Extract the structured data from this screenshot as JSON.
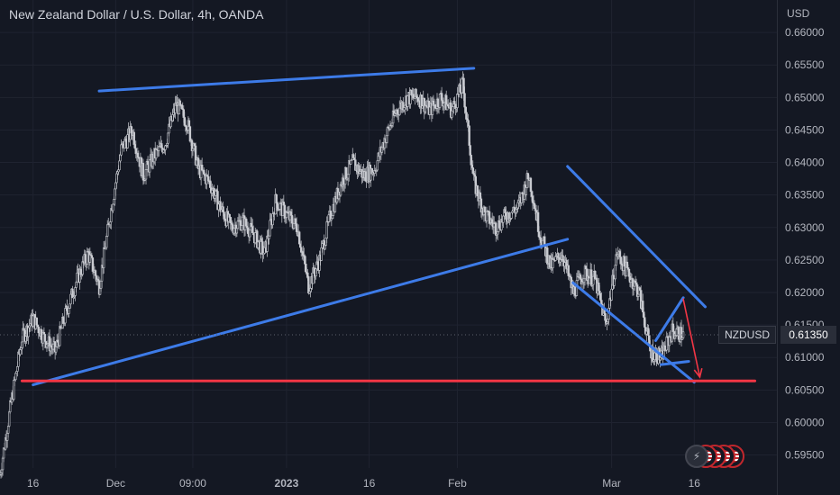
{
  "header": {
    "title": "New Zealand Dollar / U.S. Dollar, 4h, OANDA",
    "currency": "USD"
  },
  "price_label": {
    "symbol": "NZDUSD",
    "value": "0.61350"
  },
  "colors": {
    "background": "#141823",
    "candle": "#c9cbd1",
    "trendline": "#3d7be8",
    "support": "#f23645",
    "arrow": "#f23645",
    "axis_text": "#b2b5be"
  },
  "icons": [
    "lightning-icon",
    "us-flag-icon"
  ],
  "chart_data": {
    "type": "candlestick",
    "symbol": "NZDUSD",
    "timeframe": "4h",
    "source": "OANDA",
    "y_ticks": [
      0.66,
      0.655,
      0.65,
      0.645,
      0.64,
      0.635,
      0.63,
      0.625,
      0.62,
      0.615,
      0.61,
      0.605,
      0.6,
      0.595
    ],
    "y_tick_labels": [
      "0.66000",
      "0.65500",
      "0.65000",
      "0.64500",
      "0.64000",
      "0.63500",
      "0.63000",
      "0.62500",
      "0.62000",
      "0.61500",
      "0.61000",
      "0.60500",
      "0.60000",
      "0.59500"
    ],
    "ylim": [
      0.593,
      0.665
    ],
    "x_tick_labels": [
      "16",
      "Dec",
      "09:00",
      "2023",
      "16",
      "Feb",
      "Mar",
      "16"
    ],
    "x_tick_dates": [
      "2022-11-16",
      "2022-12-01",
      "2022-12-15",
      "2023-01-01",
      "2023-01-16",
      "2023-02-01",
      "2023-03-01",
      "2023-03-16"
    ],
    "xlim": [
      "2022-11-10",
      "2023-03-31"
    ],
    "last_price": 0.6135,
    "close_path": [
      [
        "2022-11-10",
        0.592
      ],
      [
        "2022-11-12",
        0.603
      ],
      [
        "2022-11-14",
        0.613
      ],
      [
        "2022-11-16",
        0.616
      ],
      [
        "2022-11-18",
        0.613
      ],
      [
        "2022-11-20",
        0.611
      ],
      [
        "2022-11-22",
        0.617
      ],
      [
        "2022-11-24",
        0.622
      ],
      [
        "2022-11-26",
        0.626
      ],
      [
        "2022-11-28",
        0.621
      ],
      [
        "2022-11-30",
        0.632
      ],
      [
        "2022-12-02",
        0.642
      ],
      [
        "2022-12-04",
        0.645
      ],
      [
        "2022-12-06",
        0.638
      ],
      [
        "2022-12-08",
        0.641
      ],
      [
        "2022-12-10",
        0.643
      ],
      [
        "2022-12-12",
        0.649
      ],
      [
        "2022-12-14",
        0.646
      ],
      [
        "2022-12-16",
        0.639
      ],
      [
        "2022-12-18",
        0.637
      ],
      [
        "2022-12-20",
        0.633
      ],
      [
        "2022-12-22",
        0.63
      ],
      [
        "2022-12-24",
        0.631
      ],
      [
        "2022-12-26",
        0.629
      ],
      [
        "2022-12-28",
        0.626
      ],
      [
        "2022-12-30",
        0.634
      ],
      [
        "2023-01-01",
        0.632
      ],
      [
        "2023-01-03",
        0.63
      ],
      [
        "2023-01-05",
        0.621
      ],
      [
        "2023-01-07",
        0.625
      ],
      [
        "2023-01-09",
        0.632
      ],
      [
        "2023-01-11",
        0.637
      ],
      [
        "2023-01-13",
        0.64
      ],
      [
        "2023-01-15",
        0.638
      ],
      [
        "2023-01-17",
        0.639
      ],
      [
        "2023-01-19",
        0.644
      ],
      [
        "2023-01-21",
        0.648
      ],
      [
        "2023-01-23",
        0.65
      ],
      [
        "2023-01-25",
        0.65
      ],
      [
        "2023-01-27",
        0.648
      ],
      [
        "2023-01-29",
        0.65
      ],
      [
        "2023-01-31",
        0.648
      ],
      [
        "2023-02-02",
        0.652
      ],
      [
        "2023-02-04",
        0.637
      ],
      [
        "2023-02-06",
        0.632
      ],
      [
        "2023-02-08",
        0.63
      ],
      [
        "2023-02-10",
        0.632
      ],
      [
        "2023-02-12",
        0.633
      ],
      [
        "2023-02-14",
        0.638
      ],
      [
        "2023-02-16",
        0.629
      ],
      [
        "2023-02-18",
        0.624
      ],
      [
        "2023-02-20",
        0.626
      ],
      [
        "2023-02-22",
        0.62
      ],
      [
        "2023-02-24",
        0.623
      ],
      [
        "2023-02-26",
        0.622
      ],
      [
        "2023-02-28",
        0.615
      ],
      [
        "2023-03-02",
        0.626
      ],
      [
        "2023-03-04",
        0.623
      ],
      [
        "2023-03-06",
        0.62
      ],
      [
        "2023-03-08",
        0.611
      ],
      [
        "2023-03-10",
        0.61
      ],
      [
        "2023-03-12",
        0.614
      ],
      [
        "2023-03-14",
        0.6135
      ]
    ],
    "annotations": [
      {
        "name": "top-resistance-line",
        "color": "#3d7be8",
        "from": [
          "2022-11-28",
          0.651
        ],
        "to": [
          "2023-02-04",
          0.6545
        ]
      },
      {
        "name": "rising-support-line",
        "color": "#3d7be8",
        "from": [
          "2022-11-16",
          0.6058
        ],
        "to": [
          "2023-02-21",
          0.6282
        ]
      },
      {
        "name": "channel-upper-line",
        "color": "#3d7be8",
        "from": [
          "2023-02-21",
          0.6394
        ],
        "to": [
          "2023-03-18",
          0.6178
        ]
      },
      {
        "name": "channel-lower-line",
        "color": "#3d7be8",
        "from": [
          "2023-02-22",
          0.6215
        ],
        "to": [
          "2023-03-16",
          0.6062
        ]
      },
      {
        "name": "flag-upper-line",
        "color": "#3d7be8",
        "from": [
          "2023-03-09",
          0.6126
        ],
        "to": [
          "2023-03-14",
          0.6192
        ]
      },
      {
        "name": "flag-lower-line",
        "color": "#3d7be8",
        "from": [
          "2023-03-10",
          0.6089
        ],
        "to": [
          "2023-03-15",
          0.6094
        ]
      },
      {
        "name": "horizontal-support-line",
        "color": "#f23645",
        "from": [
          "2022-11-14",
          0.6064
        ],
        "to": [
          "2023-03-27",
          0.6064
        ]
      },
      {
        "name": "projection-arrow",
        "color": "#f23645",
        "from": [
          "2023-03-14",
          0.619
        ],
        "to": [
          "2023-03-17",
          0.607
        ]
      }
    ]
  }
}
